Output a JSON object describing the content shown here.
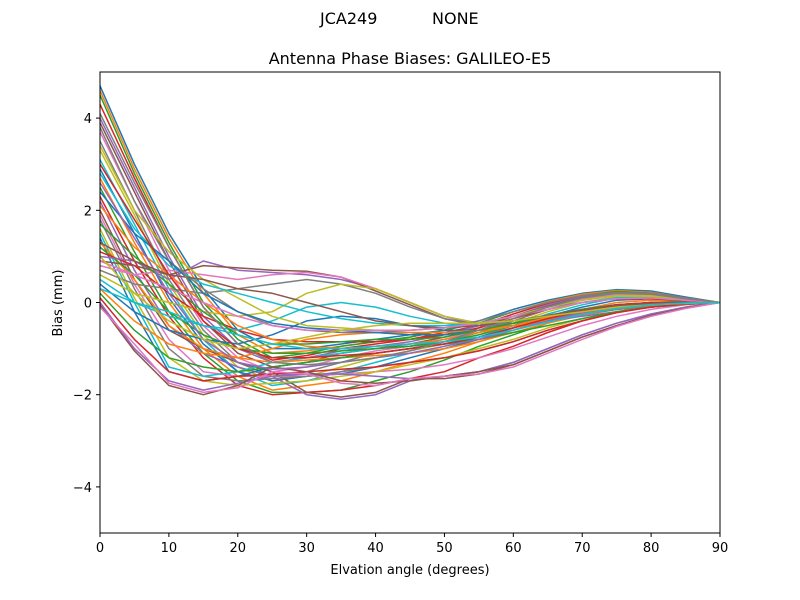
{
  "figure": {
    "suptitle_station": "JCA249",
    "suptitle_radome": "NONE"
  },
  "chart_data": {
    "type": "line",
    "title": "Antenna Phase Biases: GALILEO-E5",
    "xlabel": "Elvation angle (degrees)",
    "ylabel": "Bias (mm)",
    "xlim": [
      0,
      90
    ],
    "ylim": [
      -5,
      5
    ],
    "xticks": [
      0,
      10,
      20,
      30,
      40,
      50,
      60,
      70,
      80,
      90
    ],
    "xtick_labels": [
      "0",
      "10",
      "20",
      "30",
      "40",
      "50",
      "60",
      "70",
      "80",
      "90"
    ],
    "yticks": [
      -4,
      -2,
      0,
      2,
      4
    ],
    "ytick_labels": [
      "−4",
      "−2",
      "0",
      "2",
      "4"
    ],
    "grid": false,
    "legend": "none",
    "x": [
      0,
      5,
      10,
      15,
      20,
      25,
      30,
      35,
      40,
      45,
      50,
      55,
      60,
      65,
      70,
      75,
      80,
      85,
      90
    ],
    "colors": [
      "#1f77b4",
      "#ff7f0e",
      "#2ca02c",
      "#d62728",
      "#9467bd",
      "#8c564b",
      "#e377c2",
      "#7f7f7f",
      "#bcbd22",
      "#17becf"
    ],
    "series": [
      {
        "values": [
          4.7,
          3.0,
          1.5,
          0.3,
          -0.6,
          -1.0,
          -1.0,
          -0.9,
          -0.8,
          -0.7,
          -0.6,
          -0.4,
          -0.15,
          0.05,
          0.2,
          0.28,
          0.25,
          0.12,
          0.0
        ]
      },
      {
        "values": [
          4.6,
          2.9,
          1.4,
          0.2,
          -0.7,
          -1.1,
          -1.05,
          -0.95,
          -0.85,
          -0.75,
          -0.6,
          -0.45,
          -0.2,
          0.02,
          0.18,
          0.26,
          0.22,
          0.1,
          0.0
        ]
      },
      {
        "values": [
          4.5,
          2.8,
          1.3,
          0.0,
          -0.8,
          -1.2,
          -1.1,
          -0.95,
          -0.85,
          -0.75,
          -0.6,
          -0.45,
          -0.2,
          0.0,
          0.15,
          0.24,
          0.2,
          0.1,
          0.0
        ]
      },
      {
        "values": [
          4.3,
          2.7,
          1.2,
          -0.1,
          -0.9,
          -1.25,
          -1.15,
          -1.0,
          -0.9,
          -0.8,
          -0.65,
          -0.5,
          -0.25,
          -0.02,
          0.14,
          0.22,
          0.2,
          0.1,
          0.0
        ]
      },
      {
        "values": [
          4.0,
          2.5,
          1.0,
          -0.3,
          -1.0,
          -1.3,
          -1.2,
          -1.05,
          -0.95,
          -0.85,
          -0.7,
          -0.5,
          -0.3,
          -0.05,
          0.12,
          0.2,
          0.18,
          0.08,
          0.0
        ]
      },
      {
        "values": [
          3.9,
          2.4,
          0.9,
          -0.4,
          -1.1,
          -1.4,
          -1.3,
          -1.1,
          -1.0,
          -0.9,
          -0.75,
          -0.55,
          -0.3,
          -0.08,
          0.1,
          0.2,
          0.18,
          0.08,
          0.0
        ]
      },
      {
        "values": [
          3.7,
          2.2,
          0.7,
          -0.5,
          -1.2,
          -1.5,
          -1.4,
          -1.2,
          -1.05,
          -0.95,
          -0.8,
          -0.6,
          -0.35,
          -0.1,
          0.08,
          0.18,
          0.16,
          0.07,
          0.0
        ]
      },
      {
        "values": [
          3.5,
          2.0,
          0.5,
          -0.6,
          -1.3,
          -1.6,
          -1.5,
          -1.3,
          -1.1,
          -1.0,
          -0.85,
          -0.65,
          -0.4,
          -0.15,
          0.05,
          0.15,
          0.15,
          0.07,
          0.0
        ]
      },
      {
        "values": [
          3.3,
          1.9,
          0.4,
          -0.7,
          -1.4,
          -1.7,
          -1.6,
          -1.4,
          -1.2,
          -1.05,
          -0.9,
          -0.7,
          -0.45,
          -0.2,
          0.0,
          0.12,
          0.12,
          0.06,
          0.0
        ]
      },
      {
        "values": [
          3.1,
          1.7,
          0.3,
          -0.8,
          -1.5,
          -1.8,
          -1.7,
          -1.5,
          -1.3,
          -1.1,
          -0.95,
          -0.75,
          -0.5,
          -0.25,
          -0.05,
          0.1,
          0.1,
          0.05,
          0.0
        ]
      },
      {
        "values": [
          2.9,
          1.5,
          0.1,
          -0.9,
          -1.5,
          -1.7,
          -1.6,
          -1.55,
          -1.4,
          -1.2,
          -1.0,
          -0.8,
          -0.55,
          -0.3,
          -0.1,
          0.05,
          0.08,
          0.04,
          0.0
        ]
      },
      {
        "values": [
          2.7,
          1.3,
          0.0,
          -1.0,
          -1.6,
          -1.9,
          -1.8,
          -1.7,
          -1.5,
          -1.3,
          -1.1,
          -0.85,
          -0.6,
          -0.35,
          -0.15,
          0.0,
          0.05,
          0.03,
          0.0
        ]
      },
      {
        "values": [
          2.5,
          1.1,
          -0.2,
          -1.1,
          -1.7,
          -1.95,
          -1.95,
          -1.9,
          -1.7,
          -1.5,
          -1.25,
          -0.95,
          -0.7,
          -0.45,
          -0.25,
          -0.1,
          0.0,
          0.02,
          0.0
        ]
      },
      {
        "values": [
          2.3,
          0.9,
          -0.3,
          -1.2,
          -1.8,
          -2.0,
          -1.95,
          -1.9,
          -1.8,
          -1.65,
          -1.5,
          -1.2,
          -0.95,
          -0.65,
          -0.4,
          -0.2,
          -0.08,
          0.0,
          0.0
        ]
      },
      {
        "values": [
          2.2,
          0.7,
          -0.5,
          -1.1,
          -1.4,
          -1.6,
          -2.0,
          -2.1,
          -2.0,
          -1.7,
          -1.6,
          -1.5,
          -1.3,
          -1.0,
          -0.7,
          -0.45,
          -0.25,
          -0.1,
          0.0
        ]
      },
      {
        "values": [
          2.0,
          0.5,
          -0.6,
          -1.0,
          -1.3,
          -1.5,
          -1.95,
          -2.05,
          -1.95,
          -1.65,
          -1.65,
          -1.55,
          -1.35,
          -1.05,
          -0.75,
          -0.5,
          -0.28,
          -0.12,
          0.0
        ]
      },
      {
        "values": [
          1.9,
          0.4,
          -0.8,
          -1.5,
          -1.6,
          -1.6,
          -1.6,
          -1.55,
          -1.5,
          -1.45,
          -1.35,
          -1.2,
          -1.0,
          -0.75,
          -0.5,
          -0.3,
          -0.15,
          -0.05,
          0.0
        ]
      },
      {
        "values": [
          1.8,
          0.3,
          -1.0,
          -1.6,
          -1.7,
          -1.65,
          -1.6,
          -1.5,
          -1.4,
          -1.3,
          -1.2,
          -1.05,
          -0.85,
          -0.6,
          -0.4,
          -0.22,
          -0.1,
          -0.03,
          0.0
        ]
      },
      {
        "values": [
          1.6,
          0.1,
          -1.2,
          -1.7,
          -1.8,
          -1.75,
          -1.7,
          -1.6,
          -1.5,
          -1.35,
          -1.2,
          -1.0,
          -0.8,
          -0.55,
          -0.35,
          -0.2,
          -0.08,
          -0.02,
          0.0
        ]
      },
      {
        "values": [
          1.5,
          0.0,
          -1.4,
          -1.6,
          -1.5,
          -1.3,
          -1.2,
          -1.1,
          -1.0,
          -0.95,
          -0.85,
          -0.7,
          -0.5,
          -0.3,
          -0.15,
          -0.05,
          0.0,
          0.0,
          0.0
        ]
      },
      {
        "values": [
          1.4,
          -0.2,
          -1.5,
          -1.7,
          -1.6,
          -1.4,
          -1.3,
          -1.2,
          -1.1,
          -1.0,
          -0.9,
          -0.75,
          -0.55,
          -0.35,
          -0.2,
          -0.08,
          -0.02,
          0.0,
          0.0
        ]
      },
      {
        "values": [
          1.3,
          0.5,
          -0.5,
          -1.0,
          -1.2,
          -1.3,
          -1.25,
          -1.2,
          -1.15,
          -1.1,
          -1.0,
          -0.85,
          -0.65,
          -0.45,
          -0.28,
          -0.15,
          -0.06,
          -0.02,
          0.0
        ]
      },
      {
        "values": [
          1.2,
          0.6,
          -0.2,
          -0.7,
          -1.0,
          -1.1,
          -1.1,
          -1.05,
          -1.0,
          -0.95,
          -0.85,
          -0.7,
          -0.5,
          -0.3,
          -0.15,
          -0.05,
          0.0,
          0.0,
          0.0
        ]
      },
      {
        "values": [
          1.1,
          0.8,
          0.2,
          -0.3,
          -0.6,
          -0.8,
          -0.85,
          -0.85,
          -0.85,
          -0.8,
          -0.7,
          -0.55,
          -0.35,
          -0.15,
          0.0,
          0.08,
          0.08,
          0.04,
          0.0
        ]
      },
      {
        "values": [
          1.0,
          0.9,
          0.5,
          0.9,
          0.7,
          0.65,
          0.6,
          0.5,
          0.3,
          0.0,
          -0.3,
          -0.5,
          -0.5,
          -0.4,
          -0.3,
          -0.2,
          -0.1,
          -0.04,
          0.0
        ]
      },
      {
        "values": [
          0.9,
          0.8,
          0.6,
          0.8,
          0.75,
          0.7,
          0.68,
          0.55,
          0.25,
          -0.05,
          -0.35,
          -0.5,
          -0.45,
          -0.35,
          -0.25,
          -0.15,
          -0.08,
          -0.03,
          0.0
        ]
      },
      {
        "values": [
          0.8,
          0.6,
          0.7,
          0.6,
          0.5,
          0.6,
          0.65,
          0.55,
          0.3,
          0.0,
          -0.3,
          -0.45,
          -0.4,
          -0.3,
          -0.2,
          -0.1,
          -0.05,
          -0.02,
          0.0
        ]
      },
      {
        "values": [
          0.7,
          0.4,
          0.3,
          0.2,
          0.3,
          0.4,
          0.5,
          0.4,
          0.2,
          -0.1,
          -0.35,
          -0.5,
          -0.45,
          -0.35,
          -0.25,
          -0.15,
          -0.08,
          -0.03,
          0.0
        ]
      },
      {
        "values": [
          0.6,
          0.2,
          0.0,
          -0.2,
          -0.3,
          -0.2,
          0.2,
          0.4,
          0.3,
          0.0,
          -0.3,
          -0.45,
          -0.4,
          -0.3,
          -0.2,
          -0.1,
          -0.05,
          -0.02,
          0.0
        ]
      },
      {
        "values": [
          0.5,
          0.0,
          -0.3,
          -0.5,
          -0.6,
          -0.4,
          -0.1,
          0.0,
          -0.1,
          -0.3,
          -0.45,
          -0.5,
          -0.4,
          -0.3,
          -0.2,
          -0.1,
          -0.05,
          -0.02,
          0.0
        ]
      },
      {
        "values": [
          0.4,
          -0.2,
          -0.6,
          -0.8,
          -0.9,
          -0.7,
          -0.4,
          -0.3,
          -0.35,
          -0.5,
          -0.6,
          -0.6,
          -0.5,
          -0.38,
          -0.25,
          -0.13,
          -0.06,
          -0.02,
          0.0
        ]
      },
      {
        "values": [
          0.3,
          -0.4,
          -0.9,
          -1.1,
          -1.2,
          -1.0,
          -0.8,
          -0.7,
          -0.65,
          -0.65,
          -0.65,
          -0.6,
          -0.5,
          -0.38,
          -0.25,
          -0.13,
          -0.06,
          -0.02,
          0.0
        ]
      },
      {
        "values": [
          0.2,
          -0.6,
          -1.2,
          -1.4,
          -1.5,
          -1.4,
          -1.3,
          -1.2,
          -1.1,
          -1.0,
          -0.9,
          -0.8,
          -0.65,
          -0.5,
          -0.35,
          -0.2,
          -0.1,
          -0.04,
          0.0
        ]
      },
      {
        "values": [
          0.1,
          -0.8,
          -1.5,
          -1.7,
          -1.6,
          -1.55,
          -1.5,
          -1.45,
          -1.4,
          -1.3,
          -1.2,
          -1.05,
          -0.85,
          -0.6,
          -0.4,
          -0.22,
          -0.1,
          -0.03,
          0.0
        ]
      },
      {
        "values": [
          0.0,
          -1.0,
          -1.7,
          -1.9,
          -1.75,
          -1.6,
          -1.55,
          -1.55,
          -1.6,
          -1.65,
          -1.6,
          -1.5,
          -1.3,
          -1.0,
          -0.7,
          -0.45,
          -0.25,
          -0.1,
          0.0
        ]
      },
      {
        "values": [
          -0.05,
          -1.05,
          -1.8,
          -2.0,
          -1.8,
          -1.4,
          -1.5,
          -1.7,
          -1.75,
          -1.7,
          -1.6,
          -1.5,
          -1.35,
          -1.05,
          -0.75,
          -0.5,
          -0.28,
          -0.12,
          0.0
        ]
      },
      {
        "values": [
          -0.1,
          -0.9,
          -1.75,
          -1.95,
          -1.85,
          -1.5,
          -1.55,
          -1.75,
          -1.8,
          -1.65,
          -1.6,
          -1.55,
          -1.4,
          -1.1,
          -0.8,
          -0.52,
          -0.3,
          -0.13,
          0.0
        ]
      },
      {
        "values": [
          3.8,
          2.2,
          0.9,
          0.3,
          -0.2,
          -0.5,
          -0.6,
          -0.65,
          -0.65,
          -0.6,
          -0.55,
          -0.4,
          -0.2,
          0.0,
          0.15,
          0.22,
          0.2,
          0.1,
          0.0
        ]
      },
      {
        "values": [
          3.4,
          2.0,
          1.1,
          0.5,
          0.1,
          -0.3,
          -0.5,
          -0.55,
          -0.6,
          -0.6,
          -0.55,
          -0.45,
          -0.3,
          -0.1,
          0.05,
          0.15,
          0.15,
          0.07,
          0.0
        ]
      },
      {
        "values": [
          2.8,
          1.6,
          0.8,
          0.4,
          0.2,
          0.0,
          -0.2,
          -0.35,
          -0.45,
          -0.5,
          -0.5,
          -0.45,
          -0.3,
          -0.15,
          0.0,
          0.1,
          0.1,
          0.05,
          0.0
        ]
      },
      {
        "values": [
          2.4,
          1.5,
          0.9,
          0.2,
          -0.2,
          -0.45,
          -0.55,
          -0.6,
          -0.65,
          -0.7,
          -0.7,
          -0.6,
          -0.45,
          -0.3,
          -0.15,
          -0.05,
          0.0,
          0.0,
          0.0
        ]
      },
      {
        "values": [
          2.1,
          1.2,
          0.6,
          0.0,
          -0.5,
          -0.8,
          -0.95,
          -1.0,
          -0.95,
          -0.9,
          -0.8,
          -0.65,
          -0.5,
          -0.32,
          -0.18,
          -0.08,
          -0.02,
          0.0,
          0.0
        ]
      },
      {
        "values": [
          1.7,
          1.0,
          0.4,
          -0.2,
          -0.7,
          -0.9,
          -0.9,
          -0.85,
          -0.8,
          -0.8,
          -0.75,
          -0.6,
          -0.45,
          -0.28,
          -0.15,
          -0.06,
          -0.02,
          0.0,
          0.0
        ]
      },
      {
        "values": [
          3.0,
          1.8,
          0.6,
          -0.4,
          -1.0,
          -1.2,
          -1.2,
          -1.15,
          -1.1,
          -1.0,
          -0.9,
          -0.75,
          -0.55,
          -0.35,
          -0.18,
          -0.05,
          0.0,
          0.0,
          0.0
        ]
      },
      {
        "values": [
          2.6,
          1.4,
          0.2,
          -0.8,
          -1.3,
          -1.45,
          -1.4,
          -1.3,
          -1.2,
          -1.1,
          -0.95,
          -0.8,
          -0.6,
          -0.4,
          -0.22,
          -0.1,
          -0.03,
          0.0,
          0.0
        ]
      },
      {
        "values": [
          1.3,
          0.9,
          0.6,
          0.5,
          0.3,
          0.2,
          0.0,
          -0.2,
          -0.4,
          -0.5,
          -0.55,
          -0.5,
          -0.4,
          -0.28,
          -0.16,
          -0.07,
          -0.02,
          0.0,
          0.0
        ]
      },
      {
        "values": [
          0.9,
          0.6,
          0.3,
          0.0,
          -0.3,
          -0.5,
          -0.6,
          -0.6,
          -0.6,
          -0.6,
          -0.55,
          -0.45,
          -0.3,
          -0.15,
          0.0,
          0.08,
          0.1,
          0.05,
          0.0
        ]
      },
      {
        "values": [
          4.1,
          2.6,
          1.2,
          -0.1,
          -0.9,
          -1.3,
          -1.35,
          -1.3,
          -1.2,
          -1.05,
          -0.85,
          -0.6,
          -0.35,
          -0.1,
          0.1,
          0.2,
          0.18,
          0.08,
          0.0
        ]
      },
      {
        "values": [
          1.0,
          0.2,
          -0.4,
          -0.8,
          -1.0,
          -0.9,
          -0.75,
          -0.6,
          -0.5,
          -0.45,
          -0.45,
          -0.45,
          -0.4,
          -0.3,
          -0.2,
          -0.1,
          -0.05,
          -0.02,
          0.0
        ]
      },
      {
        "values": [
          0.3,
          0.0,
          -0.2,
          -0.5,
          -0.7,
          -0.9,
          -1.0,
          -1.0,
          -0.95,
          -0.9,
          -0.85,
          -0.75,
          -0.6,
          -0.42,
          -0.26,
          -0.13,
          -0.05,
          -0.01,
          0.0
        ]
      }
    ]
  }
}
